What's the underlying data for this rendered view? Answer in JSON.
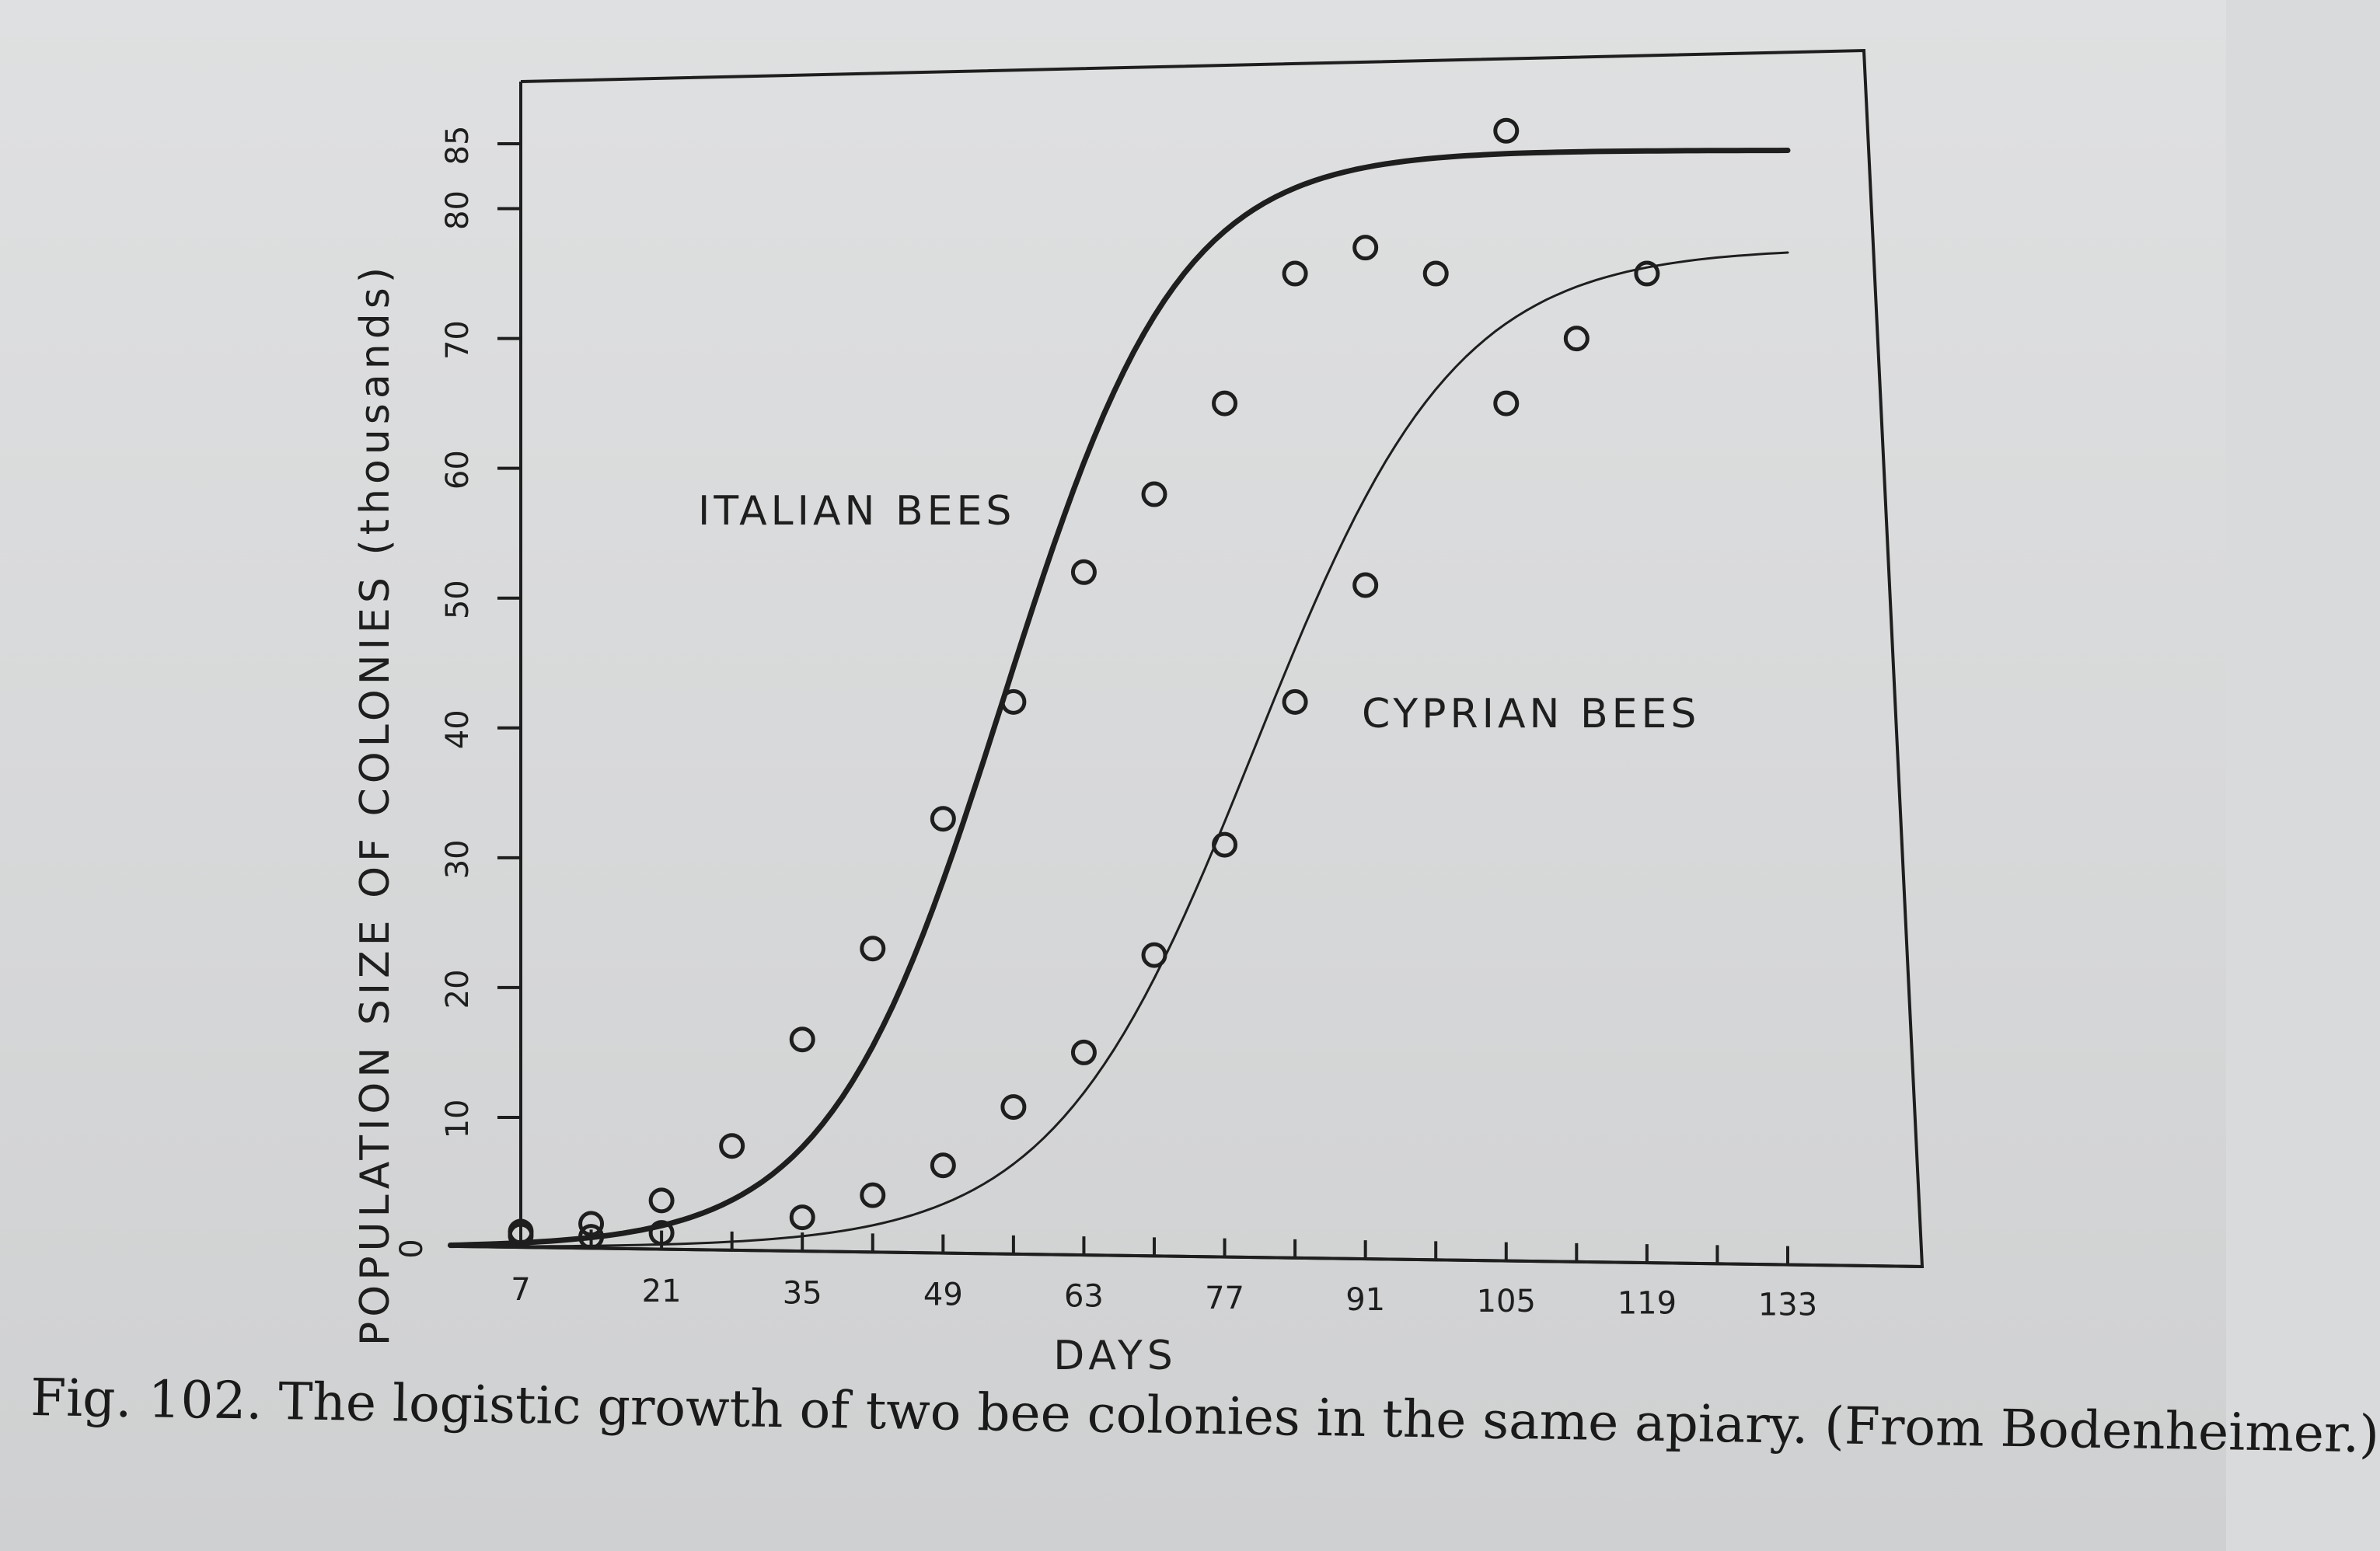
{
  "caption": "Fig. 102. The logistic growth of two bee colonies in the same apiary. (From Bodenheimer.)",
  "chart_data": {
    "type": "line",
    "xlabel": "DAYS",
    "ylabel": "POPULATION SIZE OF COLONIES (thousands)",
    "x_ticks": [
      7,
      21,
      35,
      49,
      63,
      77,
      91,
      105,
      119,
      133
    ],
    "y_ticks": [
      0,
      10,
      20,
      30,
      40,
      50,
      60,
      70,
      80,
      85
    ],
    "xlim": [
      0,
      140
    ],
    "ylim": [
      0,
      88
    ],
    "annotations": [
      "ITALIAN BEES",
      "CYPRIAN BEES"
    ],
    "series": [
      {
        "name": "ITALIAN BEES",
        "points": [
          [
            7,
            1.2
          ],
          [
            14,
            1.8
          ],
          [
            21,
            3.6
          ],
          [
            28,
            7.8
          ],
          [
            35,
            16
          ],
          [
            42,
            23
          ],
          [
            49,
            33
          ],
          [
            56,
            42
          ],
          [
            63,
            52
          ],
          [
            70,
            58
          ],
          [
            77,
            65
          ],
          [
            84,
            75
          ],
          [
            91,
            77
          ],
          [
            98,
            75
          ],
          [
            105,
            86
          ]
        ],
        "curve": {
          "K": 84.5,
          "t_mid": 55,
          "r": 0.115
        }
      },
      {
        "name": "CYPRIAN BEES",
        "points": [
          [
            7,
            0.9
          ],
          [
            14,
            0.8
          ],
          [
            21,
            1.1
          ],
          [
            35,
            2.3
          ],
          [
            42,
            4
          ],
          [
            49,
            6.3
          ],
          [
            56,
            10.8
          ],
          [
            63,
            15
          ],
          [
            70,
            22.5
          ],
          [
            77,
            31
          ],
          [
            84,
            42
          ],
          [
            91,
            51
          ],
          [
            105,
            65
          ],
          [
            112,
            70
          ],
          [
            119,
            75
          ]
        ],
        "curve": {
          "K": 77,
          "t_mid": 80,
          "r": 0.1
        }
      }
    ],
    "colors": {
      "ink": "#1e1e1e",
      "paper": "#dadbdc"
    }
  }
}
